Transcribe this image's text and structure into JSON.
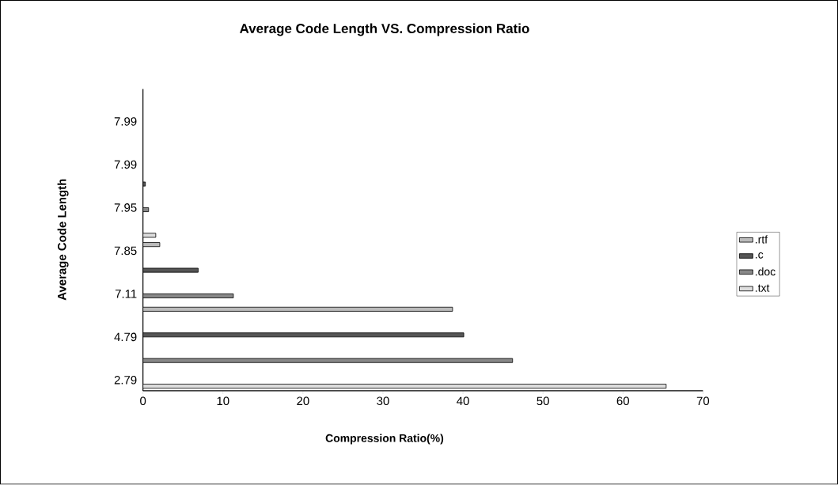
{
  "chart_data": {
    "type": "bar",
    "orientation": "horizontal",
    "title": "Average Code Length VS. Compression Ratio",
    "xlabel": "Compression Ratio(%)",
    "ylabel": "Average Code Length",
    "categories": [
      null,
      "7.99",
      null,
      "7.99",
      null,
      "7.95",
      null,
      "7.85",
      null,
      "7.11",
      null,
      "4.79",
      null,
      "2.79"
    ],
    "series": [
      {
        "name": ".rtf",
        "color": "#bbbbbb",
        "values": [
          null,
          null,
          null,
          null,
          null,
          null,
          null,
          2.1,
          null,
          null,
          38.7,
          null,
          null,
          null
        ]
      },
      {
        "name": ".c",
        "color": "#555555",
        "values": [
          null,
          null,
          null,
          null,
          0.3,
          null,
          null,
          null,
          6.9,
          null,
          null,
          40.1,
          null,
          null
        ]
      },
      {
        "name": ".doc",
        "color": "#888888",
        "values": [
          null,
          null,
          null,
          null,
          null,
          0.7,
          null,
          null,
          null,
          11.3,
          null,
          null,
          46.2,
          null
        ]
      },
      {
        "name": ".txt",
        "color": "#dddddd",
        "values": [
          null,
          null,
          null,
          null,
          null,
          null,
          1.6,
          null,
          null,
          null,
          null,
          null,
          null,
          65.4
        ]
      }
    ],
    "xlim": [
      0,
      70
    ],
    "xticks": [
      0,
      10,
      20,
      30,
      40,
      50,
      60,
      70
    ],
    "legend": "right"
  }
}
